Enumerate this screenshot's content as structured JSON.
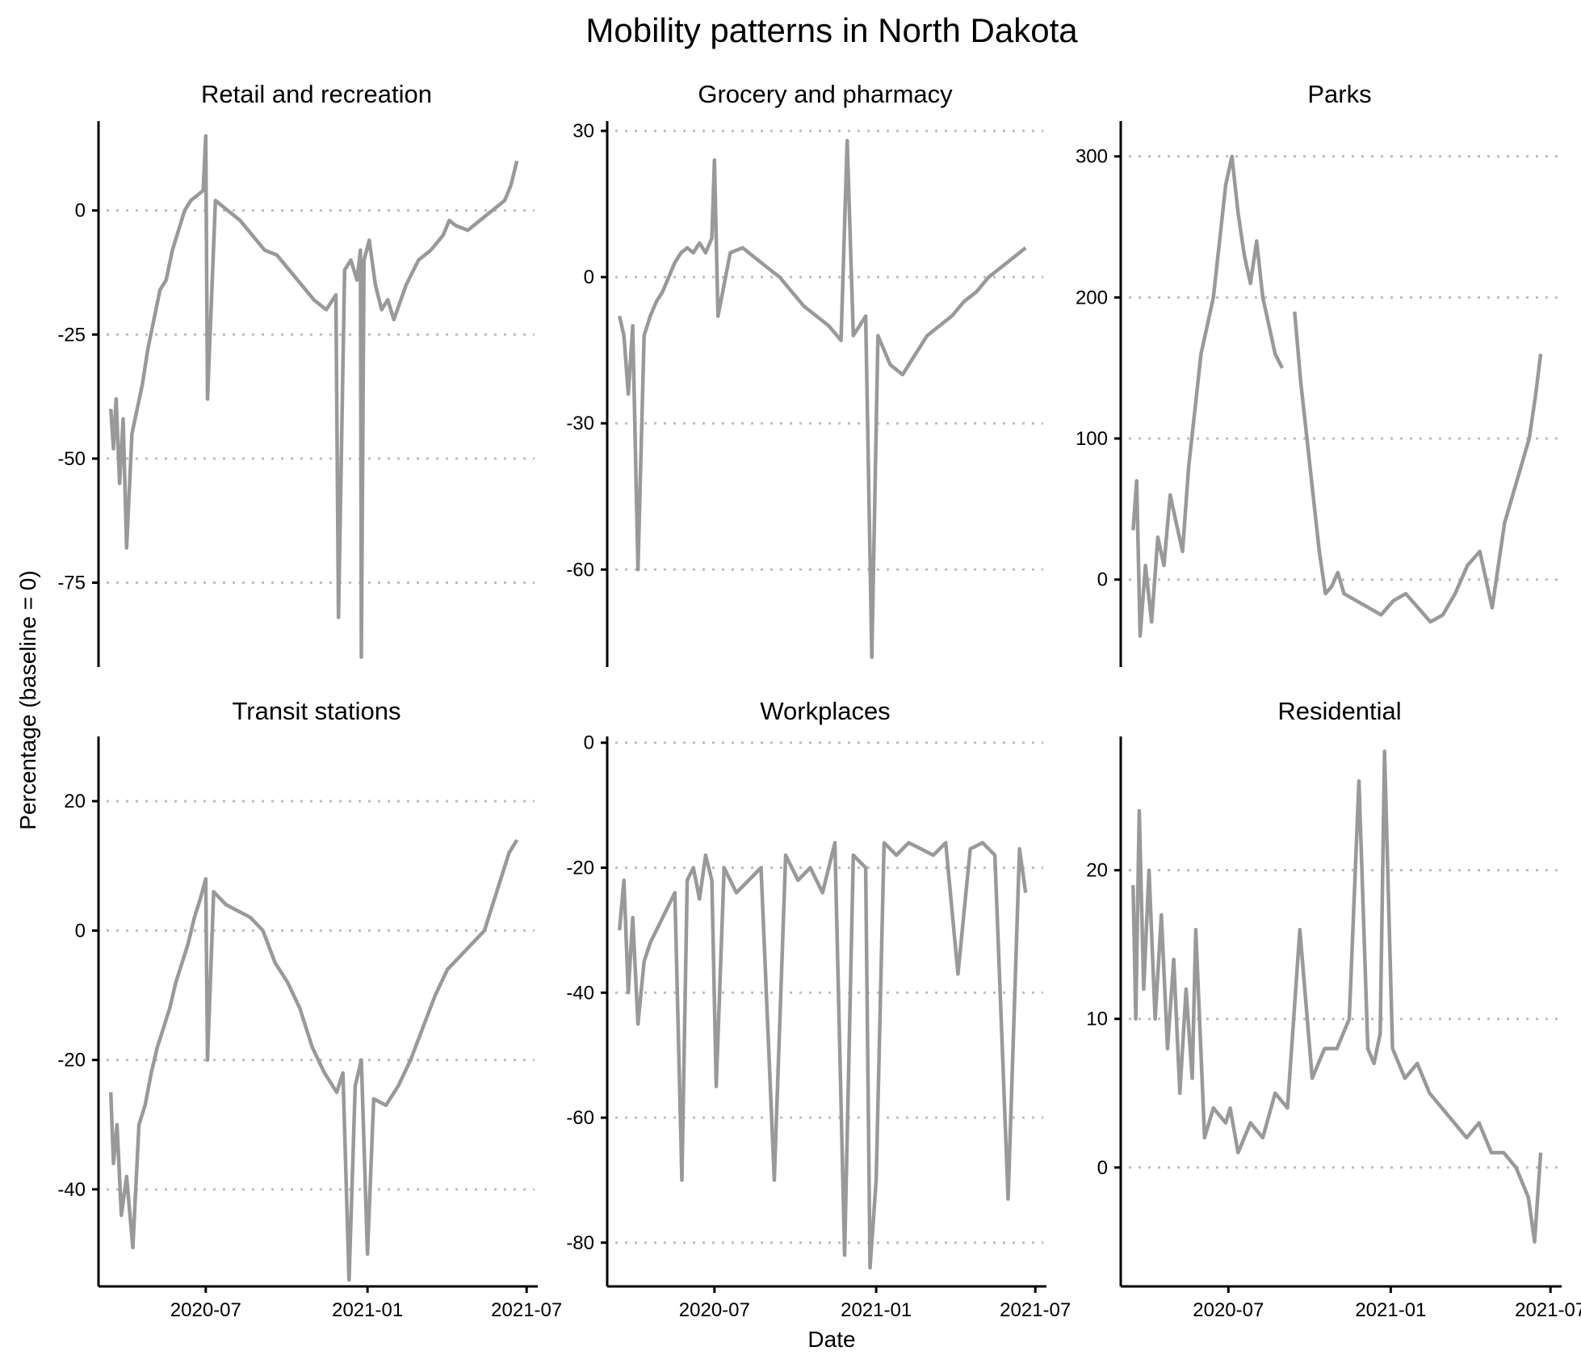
{
  "title": "Mobility patterns in North Dakota",
  "xlabel": "Date",
  "ylabel": "Percentage (baseline = 0)",
  "colors": {
    "line": "#999999",
    "grid": "#bdbdbd",
    "axis": "#000000"
  },
  "chart_data": [
    {
      "type": "line",
      "title": "Retail and recreation",
      "ylim": [
        -92,
        18
      ],
      "yticks": [
        -75,
        -50,
        -25,
        0
      ],
      "xlim": [
        "2020-03-01",
        "2021-07-10"
      ],
      "xticks": [
        "2020-07",
        "2021-01",
        "2021-07"
      ],
      "grid": "horizontal dotted",
      "x": [
        "2020-03-15",
        "2020-03-18",
        "2020-03-21",
        "2020-03-25",
        "2020-03-29",
        "2020-04-02",
        "2020-04-08",
        "2020-04-14",
        "2020-04-20",
        "2020-04-26",
        "2020-05-03",
        "2020-05-10",
        "2020-05-17",
        "2020-05-24",
        "2020-05-31",
        "2020-06-07",
        "2020-06-14",
        "2020-06-21",
        "2020-06-28",
        "2020-07-01",
        "2020-07-03",
        "2020-07-12",
        "2020-07-26",
        "2020-08-09",
        "2020-08-23",
        "2020-09-06",
        "2020-09-20",
        "2020-10-04",
        "2020-10-18",
        "2020-11-01",
        "2020-11-15",
        "2020-11-26",
        "2020-11-29",
        "2020-12-06",
        "2020-12-13",
        "2020-12-20",
        "2020-12-24",
        "2020-12-25",
        "2020-12-28",
        "2021-01-03",
        "2021-01-10",
        "2021-01-17",
        "2021-01-24",
        "2021-01-31",
        "2021-02-14",
        "2021-02-28",
        "2021-03-14",
        "2021-03-28",
        "2021-04-04",
        "2021-04-11",
        "2021-04-25",
        "2021-05-09",
        "2021-05-23",
        "2021-06-06",
        "2021-06-13",
        "2021-06-20"
      ],
      "series": [
        {
          "values": [
            -40,
            -48,
            -38,
            -55,
            -42,
            -68,
            -45,
            -40,
            -35,
            -28,
            -22,
            -16,
            -14,
            -8,
            -4,
            0,
            2,
            3,
            4,
            15,
            -38,
            2,
            0,
            -2,
            -5,
            -8,
            -9,
            -12,
            -15,
            -18,
            -20,
            -17,
            -82,
            -12,
            -10,
            -14,
            -8,
            -90,
            -10,
            -6,
            -15,
            -20,
            -18,
            -22,
            -15,
            -10,
            -8,
            -5,
            -2,
            -3,
            -4,
            -2,
            0,
            2,
            5,
            10
          ]
        }
      ]
    },
    {
      "type": "line",
      "title": "Grocery and pharmacy",
      "ylim": [
        -80,
        32
      ],
      "yticks": [
        -60,
        -30,
        0,
        30
      ],
      "xlim": [
        "2020-03-01",
        "2021-07-10"
      ],
      "xticks": [
        "2020-07",
        "2021-01",
        "2021-07"
      ],
      "grid": "horizontal dotted",
      "x": [
        "2020-03-15",
        "2020-03-20",
        "2020-03-25",
        "2020-03-30",
        "2020-04-05",
        "2020-04-12",
        "2020-04-19",
        "2020-04-26",
        "2020-05-03",
        "2020-05-10",
        "2020-05-17",
        "2020-05-24",
        "2020-05-31",
        "2020-06-07",
        "2020-06-14",
        "2020-06-21",
        "2020-06-28",
        "2020-07-01",
        "2020-07-05",
        "2020-07-19",
        "2020-08-02",
        "2020-08-16",
        "2020-08-30",
        "2020-09-13",
        "2020-09-27",
        "2020-10-11",
        "2020-10-25",
        "2020-11-08",
        "2020-11-22",
        "2020-11-29",
        "2020-12-06",
        "2020-12-13",
        "2020-12-20",
        "2020-12-27",
        "2021-01-03",
        "2021-01-17",
        "2021-01-31",
        "2021-02-14",
        "2021-02-28",
        "2021-03-14",
        "2021-03-28",
        "2021-04-11",
        "2021-04-25",
        "2021-05-09",
        "2021-05-23",
        "2021-06-06",
        "2021-06-20"
      ],
      "series": [
        {
          "values": [
            -8,
            -12,
            -24,
            -10,
            -60,
            -12,
            -8,
            -5,
            -3,
            0,
            3,
            5,
            6,
            5,
            7,
            5,
            8,
            24,
            -8,
            5,
            6,
            4,
            2,
            0,
            -3,
            -6,
            -8,
            -10,
            -13,
            28,
            -12,
            -10,
            -8,
            -78,
            -12,
            -18,
            -20,
            -16,
            -12,
            -10,
            -8,
            -5,
            -3,
            0,
            2,
            4,
            6
          ]
        }
      ]
    },
    {
      "type": "line",
      "title": "Parks",
      "ylim": [
        -62,
        325
      ],
      "yticks": [
        0,
        100,
        200,
        300
      ],
      "xlim": [
        "2020-03-01",
        "2021-07-10"
      ],
      "xticks": [
        "2020-07",
        "2021-01",
        "2021-07"
      ],
      "grid": "horizontal dotted",
      "x": [
        "2020-03-15",
        "2020-03-19",
        "2020-03-23",
        "2020-03-29",
        "2020-04-05",
        "2020-04-12",
        "2020-04-19",
        "2020-04-26",
        "2020-05-03",
        "2020-05-10",
        "2020-05-17",
        "2020-05-24",
        "2020-05-31",
        "2020-06-07",
        "2020-06-14",
        "2020-06-21",
        "2020-06-28",
        "2020-07-05",
        "2020-07-12",
        "2020-07-19",
        "2020-07-26",
        "2020-08-02",
        "2020-08-09",
        "2020-08-16",
        "2020-08-23",
        "2020-08-31",
        "2020-09-07",
        "2020-09-14",
        "2020-09-21",
        "2020-09-28",
        "2020-10-05",
        "2020-10-12",
        "2020-10-19",
        "2020-10-26",
        "2020-11-02",
        "2020-11-09",
        "2020-11-23",
        "2020-12-07",
        "2020-12-21",
        "2021-01-04",
        "2021-01-18",
        "2021-02-01",
        "2021-02-15",
        "2021-03-01",
        "2021-03-15",
        "2021-03-29",
        "2021-04-12",
        "2021-04-26",
        "2021-05-10",
        "2021-05-24",
        "2021-06-07",
        "2021-06-14",
        "2021-06-20"
      ],
      "series": [
        {
          "values": [
            35,
            70,
            -40,
            10,
            -30,
            30,
            10,
            60,
            40,
            20,
            80,
            120,
            160,
            180,
            200,
            240,
            280,
            300,
            260,
            230,
            210,
            240,
            200,
            180,
            160,
            150,
            null,
            190,
            140,
            100,
            60,
            20,
            -10,
            -5,
            5,
            -10,
            -15,
            -20,
            -25,
            -15,
            -10,
            -20,
            -30,
            -25,
            -10,
            10,
            20,
            -20,
            40,
            70,
            100,
            130,
            160
          ]
        }
      ]
    },
    {
      "type": "line",
      "title": "Transit stations",
      "ylim": [
        -55,
        30
      ],
      "yticks": [
        -40,
        -20,
        0,
        20
      ],
      "xlim": [
        "2020-03-01",
        "2021-07-10"
      ],
      "xticks": [
        "2020-07",
        "2021-01",
        "2021-07"
      ],
      "grid": "horizontal dotted",
      "x": [
        "2020-03-15",
        "2020-03-18",
        "2020-03-22",
        "2020-03-27",
        "2020-04-02",
        "2020-04-09",
        "2020-04-16",
        "2020-04-23",
        "2020-04-30",
        "2020-05-07",
        "2020-05-14",
        "2020-05-21",
        "2020-05-28",
        "2020-06-04",
        "2020-06-11",
        "2020-06-18",
        "2020-06-25",
        "2020-07-01",
        "2020-07-03",
        "2020-07-10",
        "2020-07-24",
        "2020-08-07",
        "2020-08-21",
        "2020-09-04",
        "2020-09-18",
        "2020-10-02",
        "2020-10-16",
        "2020-10-30",
        "2020-11-13",
        "2020-11-27",
        "2020-12-04",
        "2020-12-11",
        "2020-12-18",
        "2020-12-25",
        "2021-01-01",
        "2021-01-08",
        "2021-01-22",
        "2021-02-05",
        "2021-02-19",
        "2021-03-05",
        "2021-03-19",
        "2021-04-02",
        "2021-04-16",
        "2021-04-30",
        "2021-05-14",
        "2021-05-28",
        "2021-06-11",
        "2021-06-20"
      ],
      "series": [
        {
          "values": [
            -25,
            -36,
            -30,
            -44,
            -38,
            -49,
            -30,
            -27,
            -22,
            -18,
            -15,
            -12,
            -8,
            -5,
            -2,
            2,
            5,
            8,
            -20,
            6,
            4,
            3,
            2,
            0,
            -5,
            -8,
            -12,
            -18,
            -22,
            -25,
            -22,
            -54,
            -24,
            -20,
            -50,
            -26,
            -27,
            -24,
            -20,
            -15,
            -10,
            -6,
            -4,
            -2,
            0,
            6,
            12,
            14
          ]
        }
      ]
    },
    {
      "type": "line",
      "title": "Workplaces",
      "ylim": [
        -87,
        1
      ],
      "yticks": [
        -80,
        -60,
        -40,
        -20,
        0
      ],
      "xlim": [
        "2020-03-01",
        "2021-07-10"
      ],
      "xticks": [
        "2020-07",
        "2021-01",
        "2021-07"
      ],
      "grid": "horizontal dotted",
      "x": [
        "2020-03-15",
        "2020-03-20",
        "2020-03-25",
        "2020-03-30",
        "2020-04-05",
        "2020-04-12",
        "2020-04-19",
        "2020-04-26",
        "2020-05-03",
        "2020-05-10",
        "2020-05-17",
        "2020-05-25",
        "2020-05-31",
        "2020-06-07",
        "2020-06-14",
        "2020-06-21",
        "2020-06-28",
        "2020-07-03",
        "2020-07-12",
        "2020-07-26",
        "2020-08-09",
        "2020-08-23",
        "2020-09-07",
        "2020-09-20",
        "2020-10-04",
        "2020-10-18",
        "2020-11-01",
        "2020-11-15",
        "2020-11-26",
        "2020-12-06",
        "2020-12-20",
        "2020-12-25",
        "2021-01-01",
        "2021-01-10",
        "2021-01-24",
        "2021-02-07",
        "2021-02-21",
        "2021-03-07",
        "2021-03-21",
        "2021-04-04",
        "2021-04-18",
        "2021-05-02",
        "2021-05-16",
        "2021-05-31",
        "2021-06-13",
        "2021-06-20"
      ],
      "series": [
        {
          "values": [
            -30,
            -22,
            -40,
            -28,
            -45,
            -35,
            -32,
            -30,
            -28,
            -26,
            -24,
            -70,
            -22,
            -20,
            -25,
            -18,
            -22,
            -55,
            -20,
            -24,
            -22,
            -20,
            -70,
            -18,
            -22,
            -20,
            -24,
            -16,
            -82,
            -18,
            -20,
            -84,
            -70,
            -16,
            -18,
            -16,
            -17,
            -18,
            -16,
            -37,
            -17,
            -16,
            -18,
            -73,
            -17,
            -24
          ]
        }
      ]
    },
    {
      "type": "line",
      "title": "Residential",
      "ylim": [
        -8,
        29
      ],
      "yticks": [
        0,
        10,
        20
      ],
      "xlim": [
        "2020-03-01",
        "2021-07-10"
      ],
      "xticks": [
        "2020-07",
        "2021-01",
        "2021-07"
      ],
      "grid": "horizontal dotted",
      "x": [
        "2020-03-15",
        "2020-03-18",
        "2020-03-22",
        "2020-03-27",
        "2020-04-02",
        "2020-04-09",
        "2020-04-16",
        "2020-04-23",
        "2020-04-30",
        "2020-05-07",
        "2020-05-14",
        "2020-05-21",
        "2020-05-25",
        "2020-06-04",
        "2020-06-14",
        "2020-06-28",
        "2020-07-03",
        "2020-07-12",
        "2020-07-26",
        "2020-08-09",
        "2020-08-23",
        "2020-09-06",
        "2020-09-20",
        "2020-10-04",
        "2020-10-18",
        "2020-11-01",
        "2020-11-15",
        "2020-11-26",
        "2020-12-06",
        "2020-12-13",
        "2020-12-20",
        "2020-12-25",
        "2021-01-03",
        "2021-01-17",
        "2021-01-31",
        "2021-02-14",
        "2021-02-28",
        "2021-03-14",
        "2021-03-28",
        "2021-04-11",
        "2021-04-25",
        "2021-05-09",
        "2021-05-23",
        "2021-06-06",
        "2021-06-13",
        "2021-06-20"
      ],
      "series": [
        {
          "values": [
            19,
            10,
            24,
            12,
            20,
            10,
            17,
            8,
            14,
            5,
            12,
            6,
            16,
            2,
            4,
            3,
            4,
            1,
            3,
            2,
            5,
            4,
            16,
            6,
            8,
            8,
            10,
            26,
            8,
            7,
            9,
            28,
            8,
            6,
            7,
            5,
            4,
            3,
            2,
            3,
            1,
            1,
            0,
            -2,
            -5,
            1
          ]
        }
      ]
    }
  ]
}
